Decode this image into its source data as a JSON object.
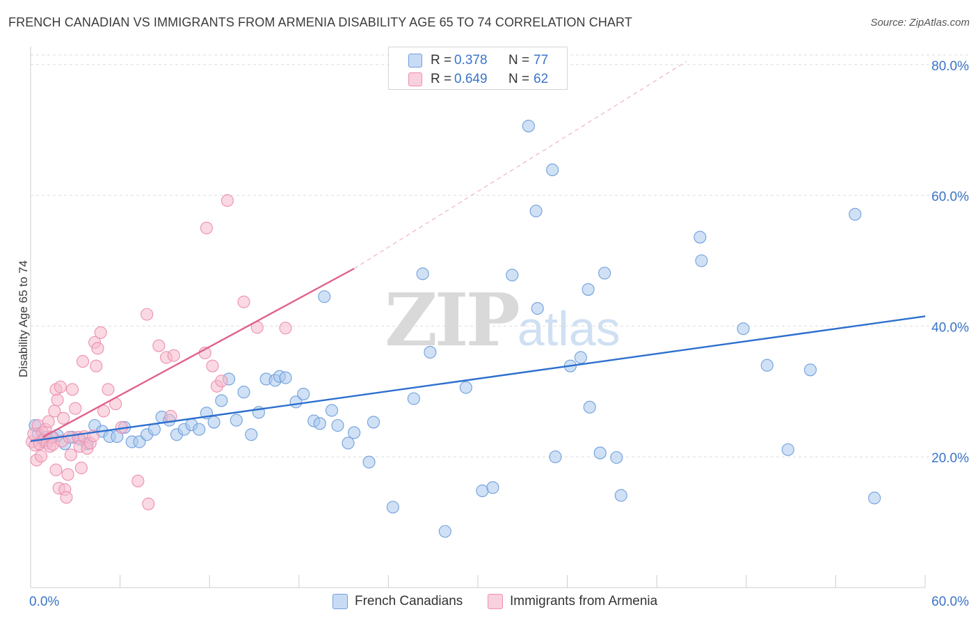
{
  "title": "FRENCH CANADIAN VS IMMIGRANTS FROM ARMENIA DISABILITY AGE 65 TO 74 CORRELATION CHART",
  "source": "Source: ZipAtlas.com",
  "watermark": {
    "zip": "ZIP",
    "atlas": "atlas"
  },
  "legend": {
    "r_label": "R =",
    "n_label": "N =",
    "rows": [
      {
        "r": "0.378",
        "n": "77"
      },
      {
        "r": "0.649",
        "n": "62"
      }
    ]
  },
  "colors": {
    "blue_fill": "#a9c8ef",
    "blue_stroke": "#6f9fdb",
    "blue_line": "#2c6fce",
    "pink_fill": "#f6b9cc",
    "pink_stroke": "#ec8fae",
    "pink_line": "#e0608c",
    "tick_text": "#3a74c8",
    "grid": "#dddddd"
  },
  "chart_data": {
    "type": "scatter",
    "title": "FRENCH CANADIAN VS IMMIGRANTS FROM ARMENIA DISABILITY AGE 65 TO 74 CORRELATION CHART",
    "xlabel": "",
    "ylabel": "Disability Age 65 to 74",
    "xlim": [
      0,
      60
    ],
    "ylim": [
      0,
      82
    ],
    "x_tick_labels": [
      "0.0%",
      "60.0%"
    ],
    "y_ticks": [
      20,
      40,
      60,
      80
    ],
    "y_tick_labels": [
      "20.0%",
      "40.0%",
      "60.0%",
      "80.0%"
    ],
    "grid": true,
    "legend_position": "top-center",
    "series": [
      {
        "name": "French Canadians",
        "r": 0.378,
        "n": 77,
        "trend": {
          "x": [
            0,
            60
          ],
          "y": [
            22.4,
            41.5
          ]
        },
        "points": [
          [
            0.3,
            24.8
          ],
          [
            0.5,
            23.5
          ],
          [
            0.8,
            22.3
          ],
          [
            1.0,
            23.0
          ],
          [
            1.2,
            22.5
          ],
          [
            1.5,
            23.0
          ],
          [
            1.8,
            23.3
          ],
          [
            2.3,
            22.0
          ],
          [
            2.8,
            23.0
          ],
          [
            3.3,
            22.7
          ],
          [
            3.8,
            22.0
          ],
          [
            4.3,
            24.8
          ],
          [
            4.8,
            23.9
          ],
          [
            5.3,
            23.1
          ],
          [
            5.8,
            23.1
          ],
          [
            6.3,
            24.5
          ],
          [
            6.8,
            22.3
          ],
          [
            7.3,
            22.3
          ],
          [
            7.8,
            23.4
          ],
          [
            8.3,
            24.2
          ],
          [
            8.8,
            26.1
          ],
          [
            9.3,
            25.6
          ],
          [
            9.8,
            23.4
          ],
          [
            10.3,
            24.2
          ],
          [
            10.8,
            24.9
          ],
          [
            11.3,
            24.2
          ],
          [
            11.8,
            26.7
          ],
          [
            12.3,
            25.3
          ],
          [
            12.8,
            28.6
          ],
          [
            13.3,
            31.9
          ],
          [
            13.8,
            25.6
          ],
          [
            14.3,
            29.9
          ],
          [
            14.8,
            23.4
          ],
          [
            15.3,
            26.8
          ],
          [
            15.8,
            31.9
          ],
          [
            16.4,
            31.7
          ],
          [
            16.7,
            32.3
          ],
          [
            17.1,
            32.1
          ],
          [
            17.8,
            28.4
          ],
          [
            18.3,
            29.6
          ],
          [
            19.0,
            25.5
          ],
          [
            19.4,
            25.1
          ],
          [
            19.7,
            44.5
          ],
          [
            20.2,
            27.1
          ],
          [
            20.6,
            24.8
          ],
          [
            21.3,
            22.1
          ],
          [
            21.7,
            23.7
          ],
          [
            22.7,
            19.2
          ],
          [
            23.0,
            25.3
          ],
          [
            24.3,
            12.3
          ],
          [
            25.7,
            28.9
          ],
          [
            26.3,
            48.0
          ],
          [
            26.8,
            36.0
          ],
          [
            27.8,
            8.6
          ],
          [
            29.2,
            30.6
          ],
          [
            30.3,
            14.8
          ],
          [
            31.0,
            15.3
          ],
          [
            32.3,
            47.8
          ],
          [
            33.4,
            70.6
          ],
          [
            33.9,
            57.6
          ],
          [
            34.0,
            42.7
          ],
          [
            35.0,
            63.9
          ],
          [
            35.2,
            20.0
          ],
          [
            36.2,
            33.9
          ],
          [
            36.9,
            35.2
          ],
          [
            37.4,
            45.6
          ],
          [
            37.5,
            27.6
          ],
          [
            38.2,
            20.6
          ],
          [
            38.5,
            48.1
          ],
          [
            39.3,
            19.9
          ],
          [
            39.6,
            14.1
          ],
          [
            44.9,
            53.6
          ],
          [
            45.0,
            50.0
          ],
          [
            47.8,
            39.6
          ],
          [
            49.4,
            34.0
          ],
          [
            50.8,
            21.1
          ],
          [
            52.3,
            33.3
          ],
          [
            55.3,
            57.1
          ],
          [
            56.6,
            13.7
          ]
        ]
      },
      {
        "name": "Immigrants from Armenia",
        "r": 0.649,
        "n": 62,
        "trend": {
          "x": [
            0.8,
            21.7
          ],
          "y": [
            23.0,
            48.8
          ]
        },
        "trend_extension": {
          "x": [
            21.7,
            44.0
          ],
          "y": [
            48.8,
            80.5
          ]
        },
        "points": [
          [
            0.1,
            22.3
          ],
          [
            0.2,
            23.5
          ],
          [
            0.3,
            21.8
          ],
          [
            0.4,
            19.5
          ],
          [
            0.5,
            24.8
          ],
          [
            0.6,
            22.0
          ],
          [
            0.7,
            20.1
          ],
          [
            0.8,
            23.7
          ],
          [
            0.9,
            22.6
          ],
          [
            1.0,
            24.2
          ],
          [
            1.1,
            22.1
          ],
          [
            1.2,
            25.4
          ],
          [
            1.3,
            21.6
          ],
          [
            1.4,
            23.0
          ],
          [
            1.5,
            21.9
          ],
          [
            1.6,
            27.0
          ],
          [
            1.7,
            30.3
          ],
          [
            1.7,
            18.0
          ],
          [
            1.8,
            28.7
          ],
          [
            1.9,
            15.2
          ],
          [
            2.0,
            30.7
          ],
          [
            2.1,
            22.4
          ],
          [
            2.2,
            25.9
          ],
          [
            2.3,
            15.0
          ],
          [
            2.4,
            13.8
          ],
          [
            2.5,
            17.3
          ],
          [
            2.6,
            23.0
          ],
          [
            2.7,
            20.3
          ],
          [
            2.8,
            30.3
          ],
          [
            3.0,
            27.4
          ],
          [
            3.2,
            23.0
          ],
          [
            3.3,
            21.6
          ],
          [
            3.4,
            18.3
          ],
          [
            3.5,
            34.6
          ],
          [
            3.6,
            23.1
          ],
          [
            3.8,
            21.3
          ],
          [
            4.0,
            22.1
          ],
          [
            4.2,
            23.2
          ],
          [
            4.3,
            37.5
          ],
          [
            4.4,
            33.9
          ],
          [
            4.5,
            36.6
          ],
          [
            4.7,
            39.0
          ],
          [
            4.9,
            27.0
          ],
          [
            5.2,
            30.3
          ],
          [
            5.7,
            28.1
          ],
          [
            6.1,
            24.5
          ],
          [
            7.2,
            16.3
          ],
          [
            7.8,
            41.8
          ],
          [
            7.9,
            12.8
          ],
          [
            8.6,
            37.0
          ],
          [
            9.1,
            35.2
          ],
          [
            9.4,
            26.2
          ],
          [
            9.6,
            35.5
          ],
          [
            11.7,
            35.9
          ],
          [
            11.8,
            55.0
          ],
          [
            12.2,
            33.9
          ],
          [
            12.5,
            30.8
          ],
          [
            12.8,
            31.6
          ],
          [
            13.2,
            59.2
          ],
          [
            14.3,
            43.7
          ],
          [
            15.2,
            39.8
          ],
          [
            17.1,
            39.7
          ]
        ]
      }
    ]
  }
}
